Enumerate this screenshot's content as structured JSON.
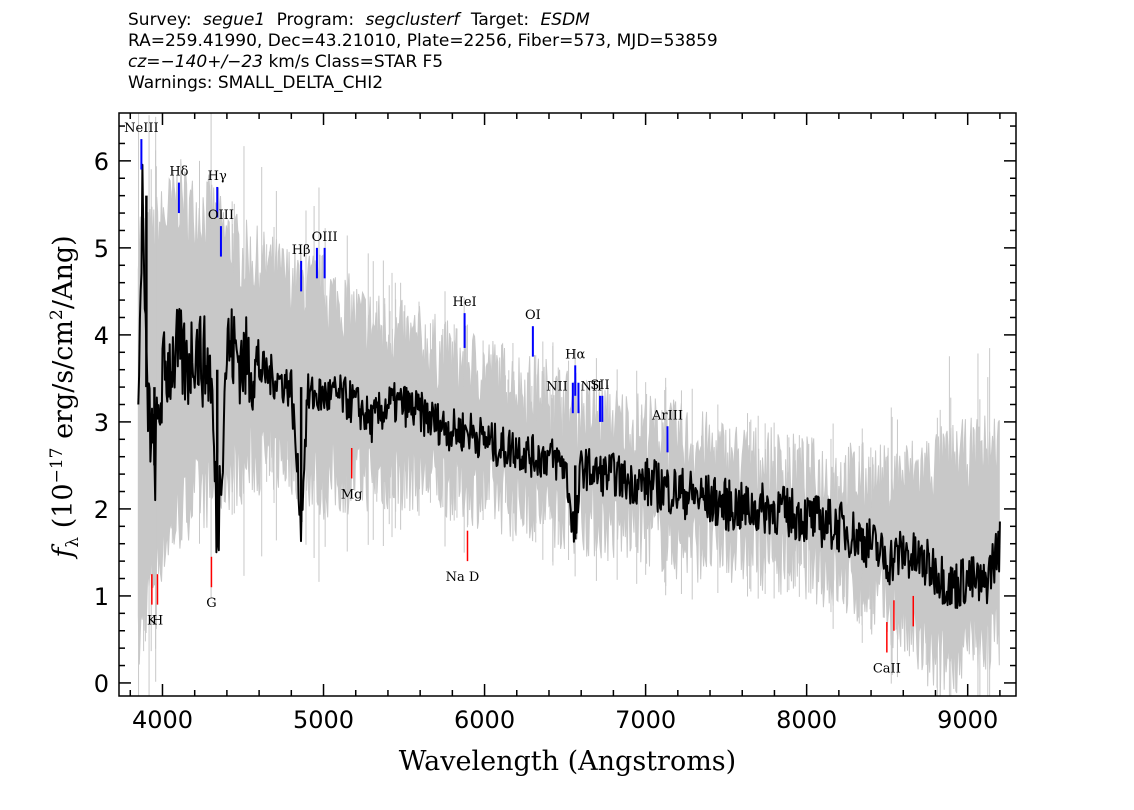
{
  "header": {
    "survey_label": "Survey:",
    "survey": "segue1",
    "program_label": "Program:",
    "program": "segclusterf",
    "target_label": "Target:",
    "target": "ESDM",
    "line2": "RA=259.41990, Dec=43.21010, Plate=2256, Fiber=573, MJD=53859",
    "cz_label": "cz=",
    "cz_value": "−140+/−23",
    "cz_rest": " km/s Class=STAR F5",
    "warnings": "Warnings: SMALL_DELTA_CHI2"
  },
  "chart_data": {
    "type": "line",
    "xlabel": "Wavelength (Angstroms)",
    "ylabel_prefix": "f",
    "ylabel_sub": "λ",
    "ylabel_open": " (10",
    "ylabel_exp": "−17",
    "ylabel_mid": " erg/s/cm",
    "ylabel_sq": "2",
    "ylabel_close": "/Ang)",
    "xlim": [
      3730,
      9300
    ],
    "ylim": [
      -0.15,
      6.55
    ],
    "xticks": [
      4000,
      5000,
      6000,
      7000,
      8000,
      9000
    ],
    "xtick_labels": [
      "4000",
      "5000",
      "6000",
      "7000",
      "8000",
      "9000"
    ],
    "yticks": [
      0,
      1,
      2,
      3,
      4,
      5,
      6
    ],
    "ytick_labels": [
      "0",
      "1",
      "2",
      "3",
      "4",
      "5",
      "6"
    ],
    "grid": false,
    "series": [
      {
        "role": "flux",
        "color": "#000000",
        "x": [
          3850,
          3875,
          3900,
          3950,
          4000,
          4050,
          4100,
          4150,
          4200,
          4250,
          4300,
          4340,
          4400,
          4450,
          4500,
          4600,
          4700,
          4800,
          4861,
          4900,
          5000,
          5100,
          5200,
          5300,
          5400,
          5500,
          5600,
          5700,
          5800,
          5900,
          6000,
          6100,
          6200,
          6300,
          6400,
          6500,
          6563,
          6600,
          6700,
          6800,
          6900,
          7000,
          7200,
          7400,
          7600,
          7800,
          8000,
          8200,
          8400,
          8500,
          8600,
          8700,
          8800,
          8900,
          9000,
          9100,
          9200
        ],
        "y": [
          3.0,
          5.6,
          3.4,
          2.5,
          3.5,
          3.7,
          3.8,
          3.6,
          3.9,
          3.7,
          3.6,
          1.65,
          3.9,
          3.8,
          3.7,
          3.6,
          3.5,
          3.4,
          1.85,
          3.3,
          3.3,
          3.3,
          3.2,
          3.0,
          3.2,
          3.2,
          3.1,
          3.0,
          2.9,
          2.9,
          2.8,
          2.7,
          2.7,
          2.6,
          2.6,
          2.5,
          1.65,
          2.5,
          2.4,
          2.4,
          2.3,
          2.3,
          2.2,
          2.1,
          2.0,
          2.0,
          1.9,
          1.8,
          1.6,
          1.4,
          1.5,
          1.4,
          1.3,
          1.1,
          1.2,
          1.1,
          1.6
        ]
      },
      {
        "role": "error_envelope",
        "color": "#c8c8c8",
        "x": [
          3850,
          3900,
          4000,
          4100,
          4200,
          4300,
          4400,
          4500,
          4600,
          4800,
          5000,
          5200,
          5400,
          5600,
          5800,
          6000,
          6200,
          6400,
          6600,
          6800,
          7000,
          7200,
          7500,
          8000,
          8500,
          8800,
          9000,
          9200
        ],
        "upper": [
          5.2,
          5.0,
          5.3,
          5.6,
          5.4,
          5.4,
          5.1,
          4.9,
          4.8,
          4.6,
          4.5,
          4.2,
          4.0,
          3.9,
          3.7,
          3.6,
          3.4,
          3.3,
          3.1,
          3.0,
          2.9,
          2.8,
          2.6,
          2.4,
          2.3,
          2.5,
          2.6,
          2.7
        ],
        "lower": [
          0.4,
          1.0,
          1.6,
          1.9,
          2.2,
          2.2,
          2.4,
          2.5,
          2.6,
          2.6,
          2.3,
          2.4,
          2.4,
          2.4,
          2.3,
          2.2,
          2.1,
          2.0,
          1.9,
          1.8,
          1.8,
          1.6,
          1.6,
          1.4,
          0.9,
          0.2,
          0.4,
          0.6
        ]
      }
    ],
    "emission_lines": [
      {
        "label": "NeIII",
        "x": 3869,
        "y_bottom": 5.9,
        "y_top": 6.25,
        "label_pos": "top"
      },
      {
        "label": "Hδ",
        "x": 4102,
        "y_bottom": 5.4,
        "y_top": 5.75,
        "label_pos": "top"
      },
      {
        "label": "Hγ",
        "x": 4340,
        "y_bottom": 5.35,
        "y_top": 5.7,
        "label_pos": "top"
      },
      {
        "label": "OIII",
        "x": 4363,
        "y_bottom": 4.9,
        "y_top": 5.25,
        "label_pos": "top"
      },
      {
        "label": "Hβ",
        "x": 4861,
        "y_bottom": 4.5,
        "y_top": 4.85,
        "label_pos": "top"
      },
      {
        "label": "",
        "x": 4959,
        "y_bottom": 4.65,
        "y_top": 5.0,
        "label_pos": "top"
      },
      {
        "label": "OIII",
        "x": 5007,
        "y_bottom": 4.65,
        "y_top": 5.0,
        "label_pos": "top"
      },
      {
        "label": "HeI",
        "x": 5876,
        "y_bottom": 3.85,
        "y_top": 4.25,
        "label_pos": "top"
      },
      {
        "label": "OI",
        "x": 6300,
        "y_bottom": 3.75,
        "y_top": 4.1,
        "label_pos": "top"
      },
      {
        "label": "NII",
        "x": 6548,
        "y_bottom": 3.1,
        "y_top": 3.45,
        "label_pos": "left"
      },
      {
        "label": "Hα",
        "x": 6563,
        "y_bottom": 3.3,
        "y_top": 3.65,
        "label_pos": "top"
      },
      {
        "label": "NII",
        "x": 6583,
        "y_bottom": 3.1,
        "y_top": 3.45,
        "label_pos": "right"
      },
      {
        "label": "SII",
        "x": 6717,
        "y_bottom": 3.0,
        "y_top": 3.3,
        "label_pos": "top"
      },
      {
        "label": "",
        "x": 6731,
        "y_bottom": 3.0,
        "y_top": 3.3,
        "label_pos": "top"
      },
      {
        "label": "ArIII",
        "x": 7136,
        "y_bottom": 2.65,
        "y_top": 2.95,
        "label_pos": "top"
      }
    ],
    "absorption_lines": [
      {
        "label": "K",
        "x": 3934,
        "y_top": 1.25,
        "y_bottom": 0.9
      },
      {
        "label": "H",
        "x": 3969,
        "y_top": 1.25,
        "y_bottom": 0.9
      },
      {
        "label": "G",
        "x": 4304,
        "y_top": 1.45,
        "y_bottom": 1.1
      },
      {
        "label": "Mg",
        "x": 5175,
        "y_top": 2.7,
        "y_bottom": 2.35
      },
      {
        "label": "Na D",
        "x": 5894,
        "y_top": 1.75,
        "y_bottom": 1.4
      },
      {
        "label": "CaII",
        "x": 8498,
        "y_top": 0.7,
        "y_bottom": 0.35
      },
      {
        "label": "",
        "x": 8542,
        "y_top": 0.95,
        "y_bottom": 0.6
      },
      {
        "label": "",
        "x": 8662,
        "y_top": 1.0,
        "y_bottom": 0.65
      }
    ],
    "emission_color": "#0000ff",
    "absorption_color": "#ff0000"
  }
}
